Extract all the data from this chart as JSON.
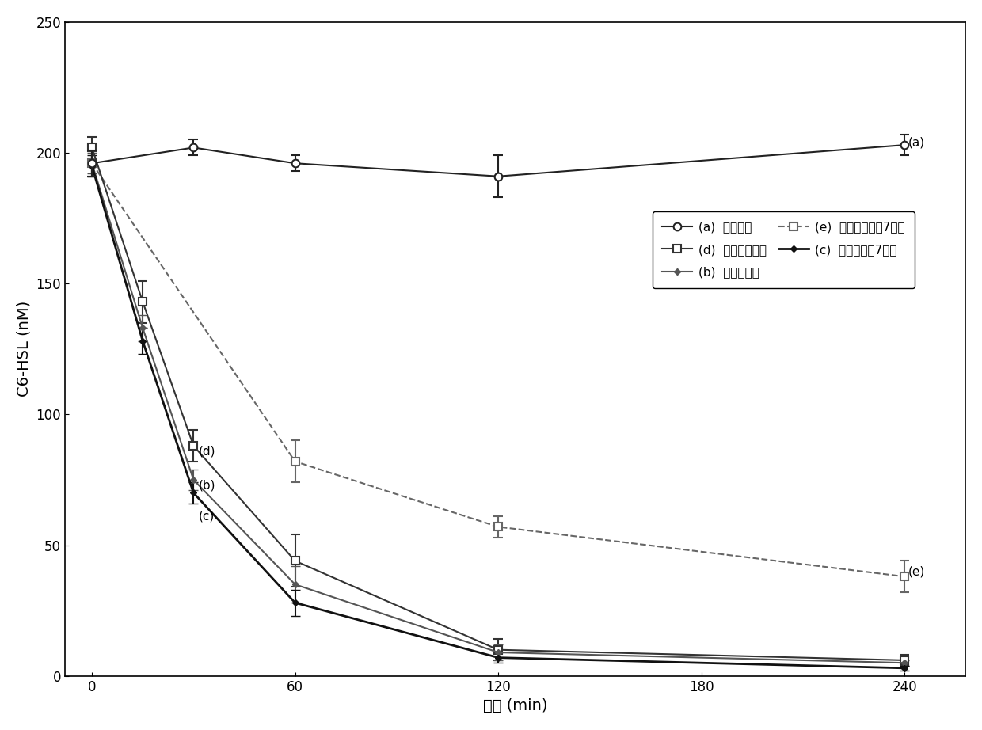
{
  "series": {
    "a": {
      "x": [
        0,
        30,
        60,
        120,
        240
      ],
      "y": [
        196,
        202,
        196,
        191,
        203
      ],
      "yerr": [
        5,
        3,
        3,
        8,
        4
      ],
      "marker": "o",
      "linestyle": "-",
      "color": "#222222",
      "linewidth": 1.5,
      "markersize": 7,
      "markerfacecolor": "white",
      "markeredgewidth": 1.5
    },
    "b": {
      "x": [
        0,
        15,
        30,
        60,
        120,
        240
      ],
      "y": [
        196,
        133,
        75,
        35,
        9,
        5
      ],
      "yerr": [
        4,
        5,
        4,
        7,
        3,
        1
      ],
      "marker": "D",
      "linestyle": "-",
      "color": "#555555",
      "linewidth": 1.5,
      "markersize": 4,
      "markerfacecolor": "#555555",
      "markeredgewidth": 1.0
    },
    "c": {
      "x": [
        0,
        15,
        30,
        60,
        120,
        240
      ],
      "y": [
        195,
        128,
        70,
        28,
        7,
        3
      ],
      "yerr": [
        4,
        5,
        4,
        5,
        2,
        1
      ],
      "marker": "D",
      "linestyle": "-",
      "color": "#111111",
      "linewidth": 2.0,
      "markersize": 4,
      "markerfacecolor": "#111111",
      "markeredgewidth": 1.0
    },
    "d": {
      "x": [
        0,
        15,
        30,
        60,
        120,
        240
      ],
      "y": [
        202,
        143,
        88,
        44,
        10,
        6
      ],
      "yerr": [
        4,
        8,
        6,
        10,
        4,
        2
      ],
      "marker": "s",
      "linestyle": "-",
      "color": "#333333",
      "linewidth": 1.5,
      "markersize": 7,
      "markerfacecolor": "white",
      "markeredgewidth": 1.5
    },
    "e": {
      "x": [
        0,
        60,
        120,
        240
      ],
      "y": [
        196,
        82,
        57,
        38
      ],
      "yerr": [
        5,
        8,
        4,
        6
      ],
      "marker": "s",
      "linestyle": "--",
      "color": "#666666",
      "linewidth": 1.5,
      "markersize": 7,
      "markerfacecolor": "white",
      "markeredgewidth": 1.5
    }
  },
  "xlabel": "时间 (min)",
  "ylabel": "C6-HSL (nM)",
  "xlim": [
    -8,
    258
  ],
  "ylim": [
    0,
    250
  ],
  "xticks": [
    0,
    60,
    120,
    180,
    240
  ],
  "yticks": [
    0,
    50,
    100,
    150,
    200,
    250
  ],
  "figsize": [
    12.4,
    9.22
  ],
  "dpi": 100,
  "legend": {
    "items": [
      {
        "label": "(a) —○— 空白对照",
        "row": 0,
        "col": 0
      },
      {
        "label": "(d) —□— 无固定化投加",
        "row": 0,
        "col": 1
      },
      {
        "label": "(b) —— 固定化投加",
        "row": 1,
        "col": 0
      },
      {
        "label": "(e) - - 无固定化投加7天后",
        "row": 1,
        "col": 1
      },
      {
        "label": "(c)— 固定化投加7天后",
        "row": 2,
        "col": 0
      }
    ]
  }
}
